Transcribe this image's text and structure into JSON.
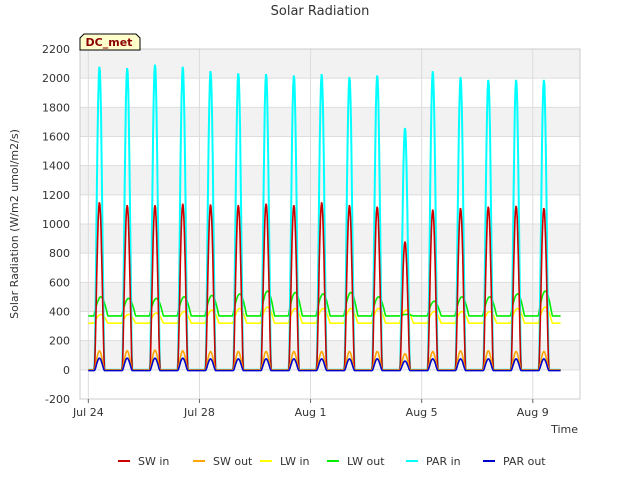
{
  "chart_data": {
    "type": "line",
    "title": "Solar Radiation",
    "xlabel": "Time",
    "ylabel": "Solar Radiation (W/m2 umol/m2/s)",
    "ylim": [
      -200,
      2200
    ],
    "yticks": [
      -200,
      0,
      200,
      400,
      600,
      800,
      1000,
      1200,
      1400,
      1600,
      1800,
      2000,
      2200
    ],
    "xlim_days": [
      -0.3,
      17.7
    ],
    "xticks": [
      {
        "label": "Jul 24",
        "day": 0
      },
      {
        "label": "Jul 28",
        "day": 4
      },
      {
        "label": "Aug 1",
        "day": 8
      },
      {
        "label": "Aug 5",
        "day": 12
      },
      {
        "label": "Aug 9",
        "day": 16
      }
    ],
    "annotation": "DC_met",
    "days": [
      0,
      1,
      2,
      3,
      4,
      5,
      6,
      7,
      8,
      9,
      10,
      11,
      12,
      13,
      14,
      15,
      16,
      17
    ],
    "series": [
      {
        "name": "SW in",
        "color": "#cc0000",
        "kind": "peak",
        "base": 0,
        "peaks": [
          1150,
          1130,
          1130,
          1140,
          1135,
          1130,
          1140,
          1130,
          1150,
          1130,
          1120,
          880,
          1100,
          1110,
          1120,
          1125,
          1110,
          0
        ]
      },
      {
        "name": "SW out",
        "color": "#ffa500",
        "kind": "peak",
        "base": 0,
        "peaks": [
          130,
          130,
          135,
          130,
          125,
          125,
          125,
          125,
          125,
          125,
          125,
          110,
          125,
          130,
          130,
          125,
          125,
          0
        ]
      },
      {
        "name": "LW in",
        "color": "#ffff00",
        "kind": "band",
        "base": 320,
        "peaks": [
          380,
          380,
          390,
          400,
          410,
          420,
          430,
          420,
          420,
          420,
          420,
          410,
          400,
          400,
          400,
          420,
          430,
          0
        ]
      },
      {
        "name": "LW out",
        "color": "#00ee00",
        "kind": "band",
        "base": 370,
        "peaks": [
          500,
          490,
          490,
          500,
          510,
          520,
          540,
          530,
          520,
          530,
          500,
          380,
          470,
          500,
          500,
          520,
          540,
          0
        ]
      },
      {
        "name": "PAR in",
        "color": "#00ffff",
        "kind": "peak",
        "base": 0,
        "peaks": [
          2080,
          2070,
          2095,
          2080,
          2050,
          2035,
          2030,
          2020,
          2030,
          2010,
          2020,
          1660,
          2050,
          2010,
          1990,
          1990,
          1990,
          0
        ]
      },
      {
        "name": "PAR out",
        "color": "#0000cc",
        "kind": "peak",
        "base": -5,
        "peaks": [
          80,
          80,
          80,
          80,
          75,
          75,
          75,
          75,
          75,
          75,
          75,
          60,
          75,
          75,
          75,
          75,
          75,
          0
        ]
      }
    ]
  }
}
